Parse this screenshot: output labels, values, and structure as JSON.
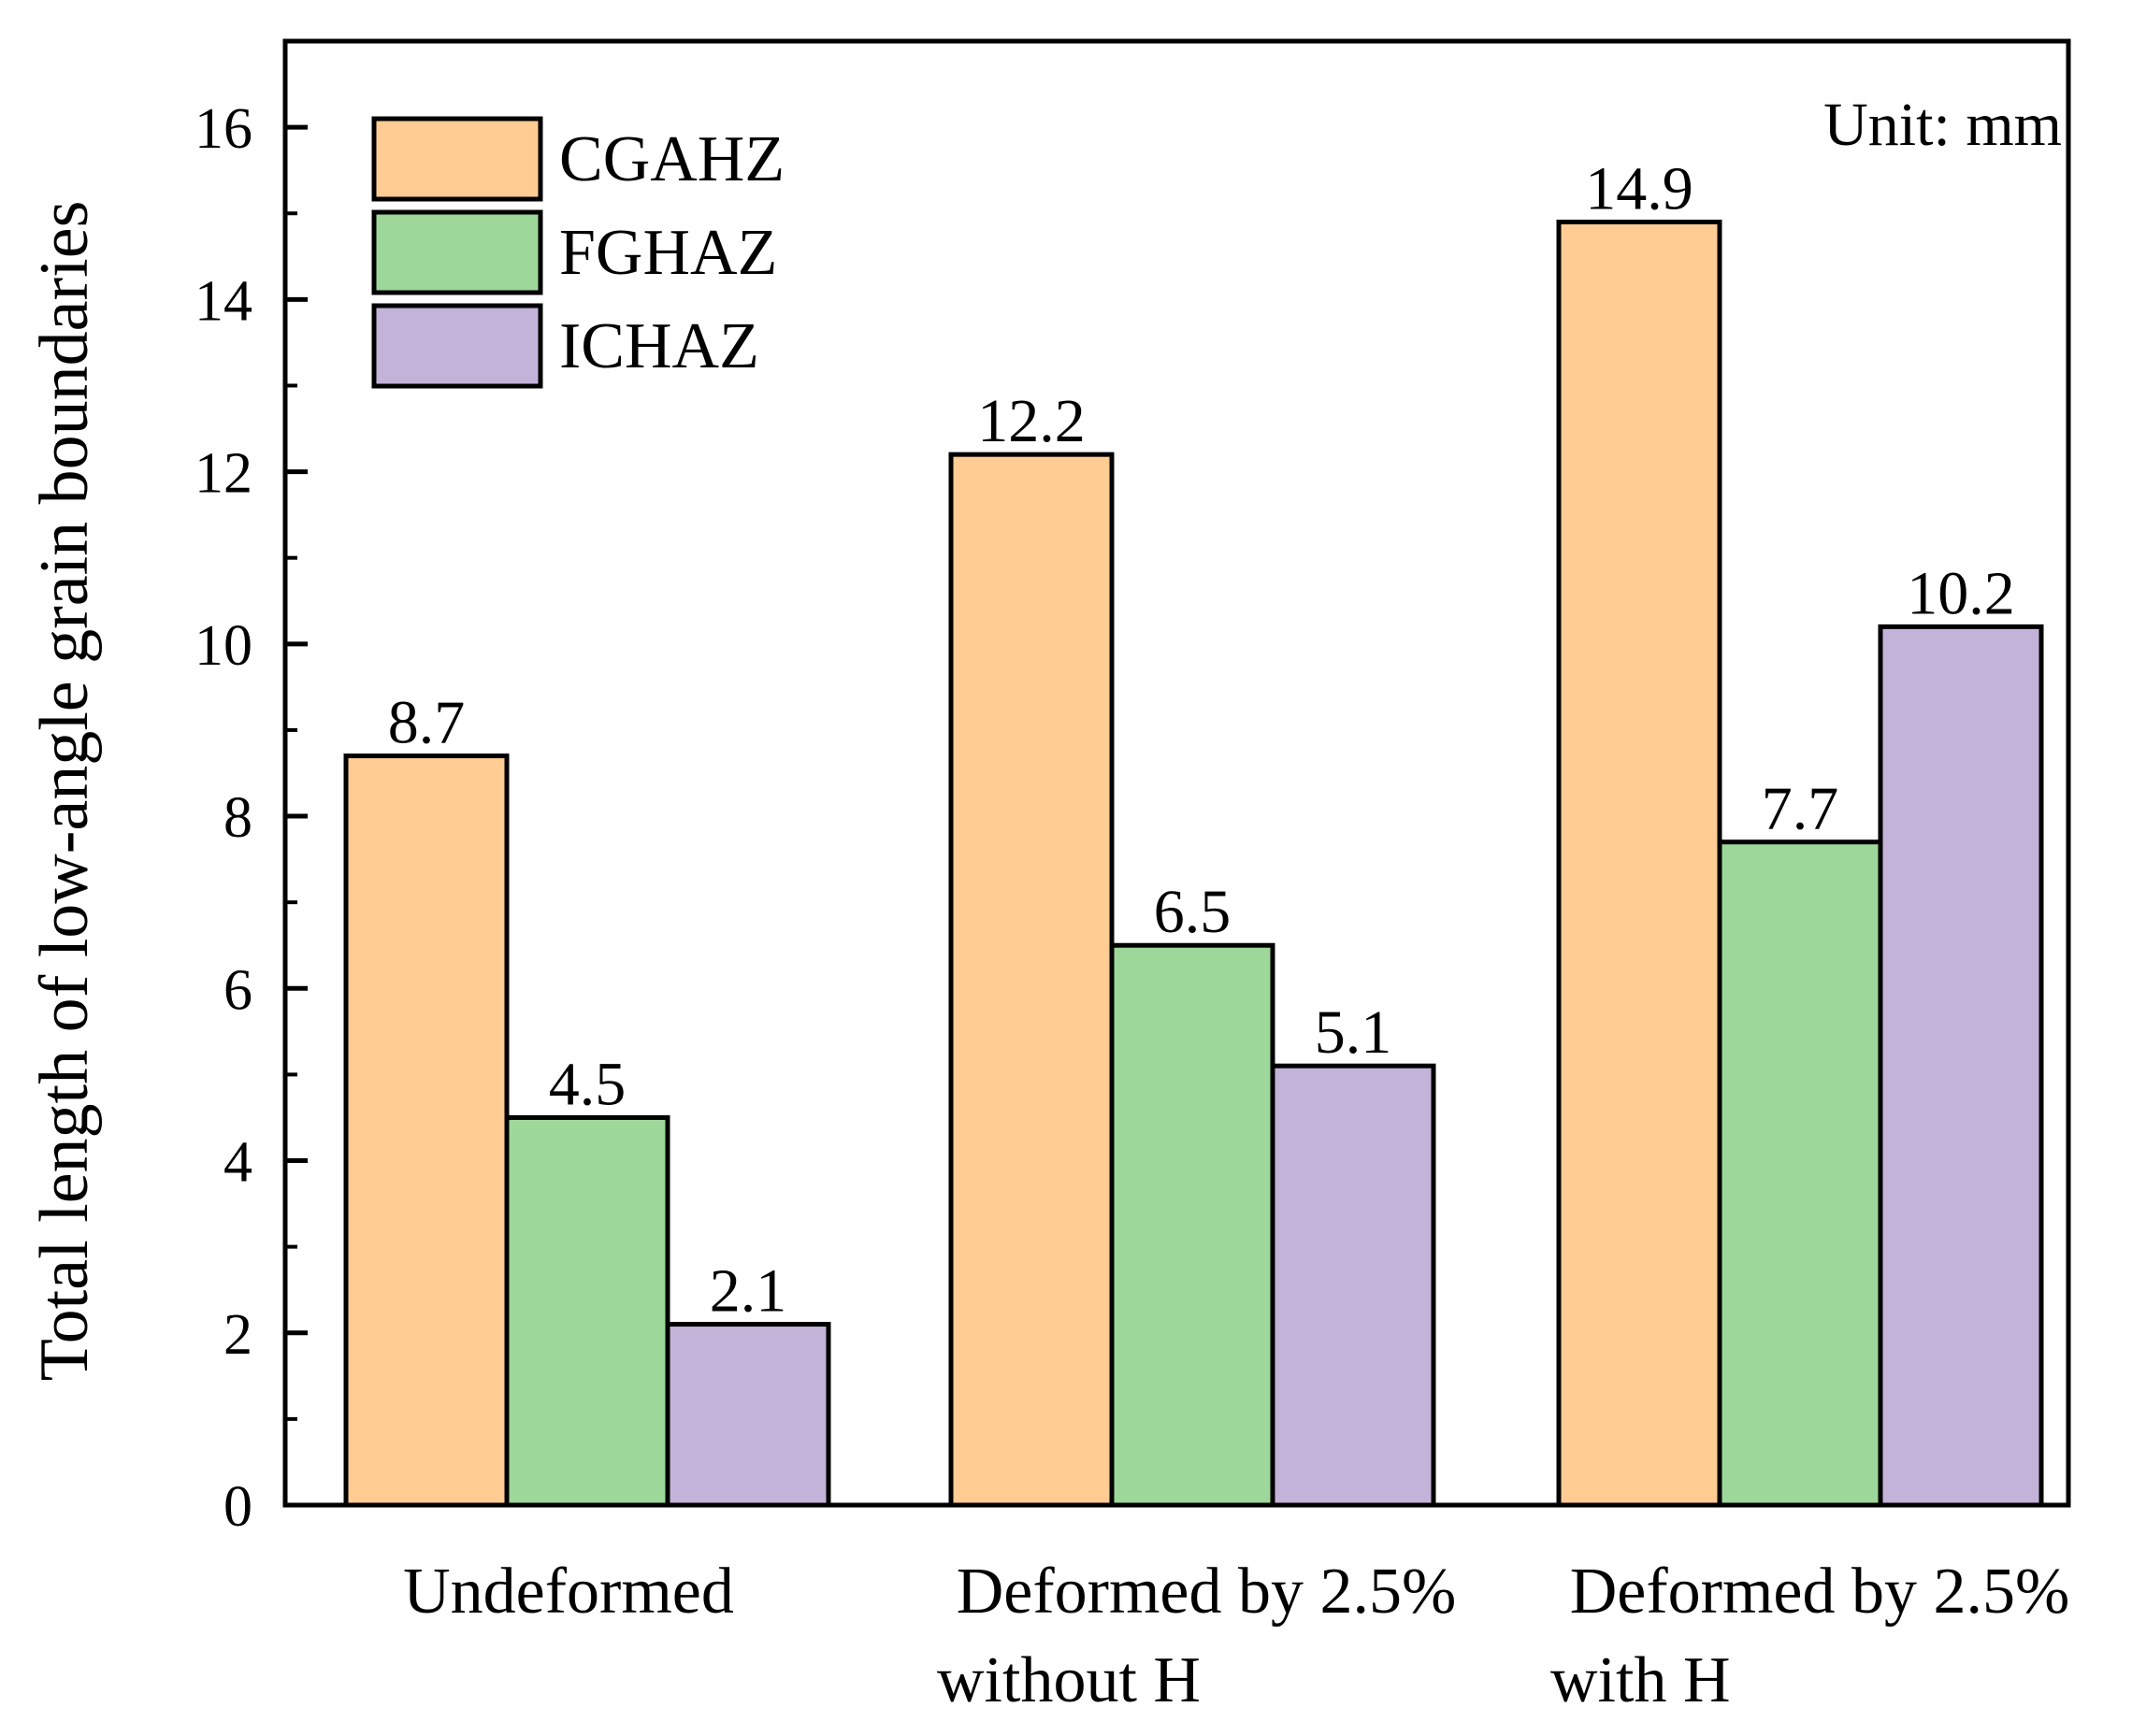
{
  "chart_data": {
    "type": "bar",
    "title": "",
    "xlabel": "",
    "ylabel": "Total length of low-angle grain boundaries",
    "unit_note": "Unit: mm",
    "ylim": [
      0,
      17
    ],
    "yticks": [
      0,
      2,
      4,
      6,
      8,
      10,
      12,
      14,
      16
    ],
    "grid": false,
    "legend_position": "top-left",
    "categories": [
      [
        "Undeformed"
      ],
      [
        "Deformed by 2.5%",
        "without H"
      ],
      [
        "Deformed by 2.5%",
        "with H"
      ]
    ],
    "series": [
      {
        "name": "CGAHZ",
        "color": "#ffcc94",
        "values": [
          8.7,
          12.2,
          14.9
        ],
        "labels": [
          "8.7",
          "12.2",
          "14.9"
        ]
      },
      {
        "name": "FGHAZ",
        "color": "#9dd79a",
        "values": [
          4.5,
          6.5,
          7.7
        ],
        "labels": [
          "4.5",
          "6.5",
          "7.7"
        ]
      },
      {
        "name": "ICHAZ",
        "color": "#c4b3d8",
        "values": [
          2.1,
          5.1,
          10.2
        ],
        "labels": [
          "2.1",
          "5.1",
          "10.2"
        ]
      }
    ]
  }
}
